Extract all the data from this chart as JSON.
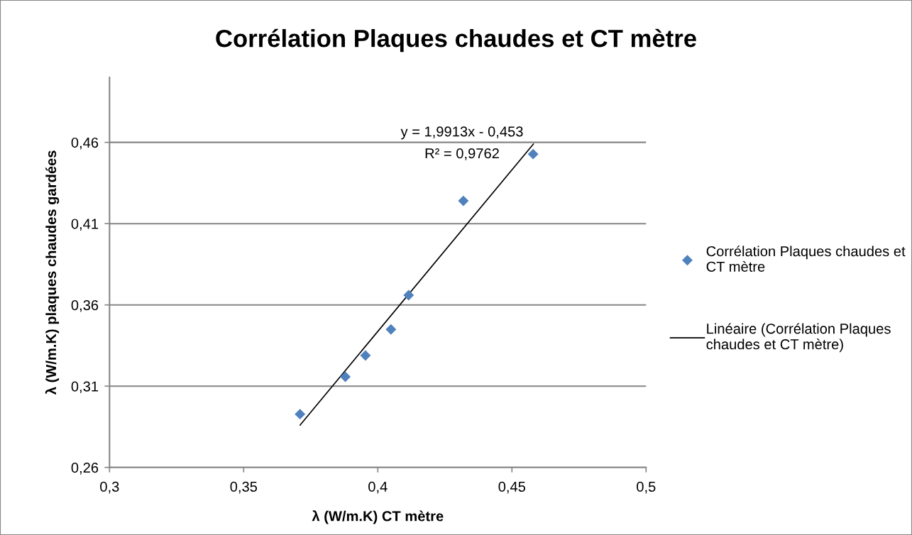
{
  "chart_data": {
    "type": "scatter",
    "title": "Corrélation Plaques chaudes et CT mètre",
    "xlabel": "λ (W/m.K) CT mètre",
    "ylabel": "λ (W/m.K) plaques chaudes gardées",
    "annotations": [
      "y = 1,9913x - 0,453",
      "R² = 0,9762"
    ],
    "series": [
      {
        "name": "Corrélation Plaques chaudes et\nCT mètre",
        "color": "#4f81bd",
        "x": [
          0.371,
          0.3879,
          0.3954,
          0.4049,
          0.4115,
          0.4319,
          0.4579
        ],
        "values": [
          0.2928,
          0.3158,
          0.3289,
          0.3449,
          0.366,
          0.424,
          0.4528
        ]
      },
      {
        "name": "Linéaire (Corrélation Plaques\nchaudes et CT mètre)",
        "type": "line",
        "marker": "none",
        "color": "#000000",
        "x": [
          0.371,
          0.458
        ],
        "values": [
          0.286,
          0.459
        ]
      }
    ],
    "xlim": [
      0.3,
      0.5
    ],
    "ylim": [
      0.26,
      0.5
    ],
    "xticks": [
      {
        "value": 0.3,
        "label": "0,3"
      },
      {
        "value": 0.35,
        "label": "0,35"
      },
      {
        "value": 0.4,
        "label": "0,4"
      },
      {
        "value": 0.45,
        "label": "0,45"
      },
      {
        "value": 0.5,
        "label": "0,5"
      }
    ],
    "yticks": [
      {
        "value": 0.26,
        "label": "0,26"
      },
      {
        "value": 0.31,
        "label": "0,31"
      },
      {
        "value": 0.36,
        "label": "0,36"
      },
      {
        "value": 0.41,
        "label": "0,41"
      },
      {
        "value": 0.46,
        "label": "0,46"
      }
    ],
    "grid": "y",
    "legend": "right",
    "marker": "diamond"
  }
}
